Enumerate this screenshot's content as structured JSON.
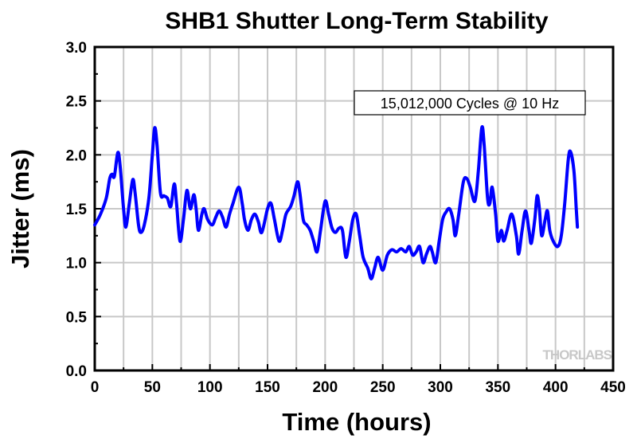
{
  "chart_data": {
    "type": "line",
    "title": "SHB1 Shutter Long-Term Stability",
    "xlabel": "Time (hours)",
    "ylabel": "Jitter (ms)",
    "xlim": [
      0,
      450
    ],
    "ylim": [
      0,
      3.0
    ],
    "xticks": [
      "0",
      "50",
      "100",
      "150",
      "200",
      "250",
      "300",
      "350",
      "400",
      "450"
    ],
    "yticks": [
      "0.0",
      "0.5",
      "1.0",
      "1.5",
      "2.0",
      "2.5",
      "3.0"
    ],
    "grid": true,
    "annotation": "15,012,000 Cycles @ 10 Hz",
    "watermark": "THORLABS",
    "series": [
      {
        "name": "Jitter",
        "color": "#0000ff",
        "x": [
          0,
          5,
          10,
          13,
          15,
          17,
          20,
          22,
          25,
          27,
          30,
          33,
          35,
          38,
          40,
          43,
          47,
          50,
          52,
          54,
          57,
          60,
          63,
          66,
          69,
          71,
          74,
          77,
          80,
          83,
          86,
          88,
          90,
          93,
          95,
          98,
          102,
          105,
          108,
          111,
          114,
          117,
          120,
          125,
          128,
          130,
          133,
          136,
          139,
          142,
          145,
          150,
          153,
          156,
          160,
          163,
          166,
          170,
          173,
          176,
          178,
          181,
          184,
          187,
          190,
          193,
          196,
          200,
          203,
          206,
          209,
          212,
          215,
          218,
          221,
          224,
          227,
          230,
          233,
          237,
          240,
          243,
          246,
          250,
          254,
          258,
          262,
          266,
          270,
          273,
          276,
          279,
          282,
          285,
          288,
          291,
          293,
          296,
          299,
          302,
          305,
          308,
          311,
          313,
          316,
          320,
          323,
          326,
          330,
          333,
          336,
          338,
          341,
          343,
          345,
          348,
          350,
          353,
          355,
          358,
          362,
          366,
          368,
          371,
          374,
          377,
          379,
          382,
          384,
          386,
          388,
          391,
          393,
          395,
          398,
          402,
          405,
          408,
          411,
          413,
          416,
          418,
          419
        ],
        "y": [
          1.35,
          1.45,
          1.6,
          1.78,
          1.82,
          1.8,
          2.02,
          1.9,
          1.5,
          1.33,
          1.55,
          1.77,
          1.65,
          1.35,
          1.28,
          1.35,
          1.6,
          2.0,
          2.25,
          2.1,
          1.65,
          1.62,
          1.6,
          1.52,
          1.73,
          1.55,
          1.2,
          1.4,
          1.67,
          1.5,
          1.63,
          1.5,
          1.3,
          1.45,
          1.5,
          1.4,
          1.35,
          1.42,
          1.48,
          1.42,
          1.33,
          1.45,
          1.55,
          1.7,
          1.55,
          1.4,
          1.3,
          1.4,
          1.45,
          1.38,
          1.28,
          1.5,
          1.55,
          1.4,
          1.2,
          1.3,
          1.45,
          1.52,
          1.62,
          1.75,
          1.65,
          1.4,
          1.35,
          1.3,
          1.2,
          1.1,
          1.3,
          1.57,
          1.45,
          1.32,
          1.28,
          1.32,
          1.3,
          1.05,
          1.2,
          1.4,
          1.45,
          1.25,
          1.05,
          0.95,
          0.85,
          0.95,
          1.05,
          0.93,
          1.07,
          1.12,
          1.1,
          1.13,
          1.1,
          1.15,
          1.07,
          1.1,
          1.15,
          1.0,
          1.08,
          1.15,
          1.1,
          1.0,
          1.2,
          1.4,
          1.47,
          1.5,
          1.4,
          1.25,
          1.45,
          1.75,
          1.78,
          1.7,
          1.57,
          1.85,
          2.25,
          2.1,
          1.6,
          1.55,
          1.7,
          1.45,
          1.2,
          1.3,
          1.2,
          1.3,
          1.45,
          1.25,
          1.08,
          1.3,
          1.48,
          1.3,
          1.18,
          1.4,
          1.62,
          1.5,
          1.25,
          1.4,
          1.48,
          1.3,
          1.2,
          1.15,
          1.25,
          1.55,
          1.95,
          2.03,
          1.85,
          1.5,
          1.33
        ]
      }
    ]
  }
}
